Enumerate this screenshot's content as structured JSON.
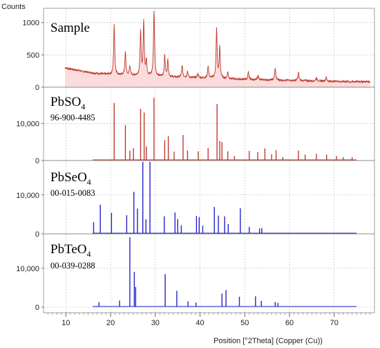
{
  "chart_data": {
    "type": "line",
    "ylabel": "Counts",
    "xlabel": "Position [°2Theta] (Copper (Cu))",
    "xlim": [
      5,
      79
    ],
    "x_ticks": [
      "10",
      "20",
      "30",
      "40",
      "50",
      "60",
      "70"
    ],
    "grid": true,
    "colors": {
      "red": "#c0392b",
      "blue": "#2222cc",
      "fill": "#fadcdc",
      "grid": "#c8c8c8"
    },
    "panels": [
      {
        "name": "Sample",
        "subscript": "",
        "code": "",
        "kind": "profile",
        "color": "red",
        "ylim": [
          0,
          1200
        ],
        "yticks": [
          "0",
          "500",
          "1000"
        ],
        "background": [
          [
            9.8,
            300
          ],
          [
            12,
            270
          ],
          [
            15,
            230
          ],
          [
            18,
            205
          ],
          [
            22,
            190
          ],
          [
            26,
            180
          ],
          [
            32,
            160
          ],
          [
            40,
            145
          ],
          [
            50,
            120
          ],
          [
            60,
            105
          ],
          [
            70,
            90
          ],
          [
            78,
            85
          ]
        ],
        "peaks": [
          [
            20.8,
            960
          ],
          [
            23.3,
            540
          ],
          [
            24.3,
            330
          ],
          [
            26.7,
            850
          ],
          [
            27.4,
            1010
          ],
          [
            28.0,
            400
          ],
          [
            29.7,
            1180
          ],
          [
            32.1,
            490
          ],
          [
            32.8,
            420
          ],
          [
            36.0,
            340
          ],
          [
            37.2,
            250
          ],
          [
            39.5,
            210
          ],
          [
            41.8,
            330
          ],
          [
            43.7,
            900
          ],
          [
            44.4,
            610
          ],
          [
            46.2,
            240
          ],
          [
            50.8,
            230
          ],
          [
            53.0,
            180
          ],
          [
            56.8,
            290
          ],
          [
            62.0,
            230
          ],
          [
            66.0,
            150
          ],
          [
            68.2,
            160
          ],
          [
            70.5,
            100
          ],
          [
            73.5,
            80
          ]
        ]
      },
      {
        "name": "PbSO",
        "subscript": "4",
        "code": "96-900-4485",
        "kind": "stick",
        "color": "red",
        "ylim": [
          0,
          19500
        ],
        "yticks": [
          "0",
          "10,000"
        ],
        "peaks": [
          [
            20.8,
            15600
          ],
          [
            23.3,
            9600
          ],
          [
            24.3,
            2700
          ],
          [
            25.1,
            3300
          ],
          [
            26.7,
            14000
          ],
          [
            27.5,
            13000
          ],
          [
            28.0,
            3800
          ],
          [
            29.7,
            17000
          ],
          [
            32.1,
            5500
          ],
          [
            32.9,
            6600
          ],
          [
            34.2,
            2400
          ],
          [
            36.2,
            6900
          ],
          [
            37.2,
            2700
          ],
          [
            39.6,
            2500
          ],
          [
            41.8,
            3400
          ],
          [
            43.8,
            15300
          ],
          [
            44.4,
            5300
          ],
          [
            44.9,
            5000
          ],
          [
            46.2,
            2500
          ],
          [
            47.7,
            1200
          ],
          [
            51.0,
            2600
          ],
          [
            52.9,
            2300
          ],
          [
            54.5,
            3300
          ],
          [
            56.0,
            1700
          ],
          [
            57.0,
            2800
          ],
          [
            58.5,
            900
          ],
          [
            62.0,
            2700
          ],
          [
            63.5,
            1600
          ],
          [
            66.0,
            1800
          ],
          [
            68.3,
            1600
          ],
          [
            70.5,
            1200
          ],
          [
            72.0,
            900
          ],
          [
            74.0,
            900
          ]
        ]
      },
      {
        "name": "PbSeO",
        "subscript": "4",
        "code": "00-015-0083",
        "kind": "stick",
        "color": "blue",
        "ylim": [
          0,
          18500
        ],
        "yticks": [
          "0",
          "10,000"
        ],
        "peaks": [
          [
            16.2,
            3000
          ],
          [
            17.7,
            7500
          ],
          [
            20.2,
            5400
          ],
          [
            23.6,
            4800
          ],
          [
            25.2,
            10800
          ],
          [
            26.0,
            6500
          ],
          [
            27.2,
            18500
          ],
          [
            27.9,
            3700
          ],
          [
            28.8,
            18500
          ],
          [
            32.0,
            4500
          ],
          [
            34.4,
            5500
          ],
          [
            35.0,
            3800
          ],
          [
            35.8,
            2200
          ],
          [
            39.2,
            4600
          ],
          [
            39.8,
            4300
          ],
          [
            40.6,
            2100
          ],
          [
            43.2,
            6900
          ],
          [
            44.1,
            4700
          ],
          [
            45.5,
            4500
          ],
          [
            46.3,
            2500
          ],
          [
            49.0,
            6600
          ],
          [
            51.0,
            1800
          ],
          [
            53.3,
            1400
          ],
          [
            53.8,
            1500
          ]
        ]
      },
      {
        "name": "PbTeO",
        "subscript": "4",
        "code": "00-039-0288",
        "kind": "stick",
        "color": "blue",
        "ylim": [
          0,
          18500
        ],
        "yticks": [
          "0",
          "10,000"
        ],
        "peaks": [
          [
            17.4,
            1300
          ],
          [
            22.0,
            1700
          ],
          [
            24.3,
            18000
          ],
          [
            25.3,
            9100
          ],
          [
            25.6,
            5200
          ],
          [
            32.2,
            8500
          ],
          [
            34.8,
            4200
          ],
          [
            37.3,
            1500
          ],
          [
            39.1,
            1200
          ],
          [
            44.9,
            3500
          ],
          [
            45.8,
            4400
          ],
          [
            48.8,
            2700
          ],
          [
            52.4,
            2800
          ],
          [
            53.7,
            1600
          ],
          [
            56.8,
            1300
          ],
          [
            57.4,
            1100
          ]
        ]
      }
    ]
  }
}
